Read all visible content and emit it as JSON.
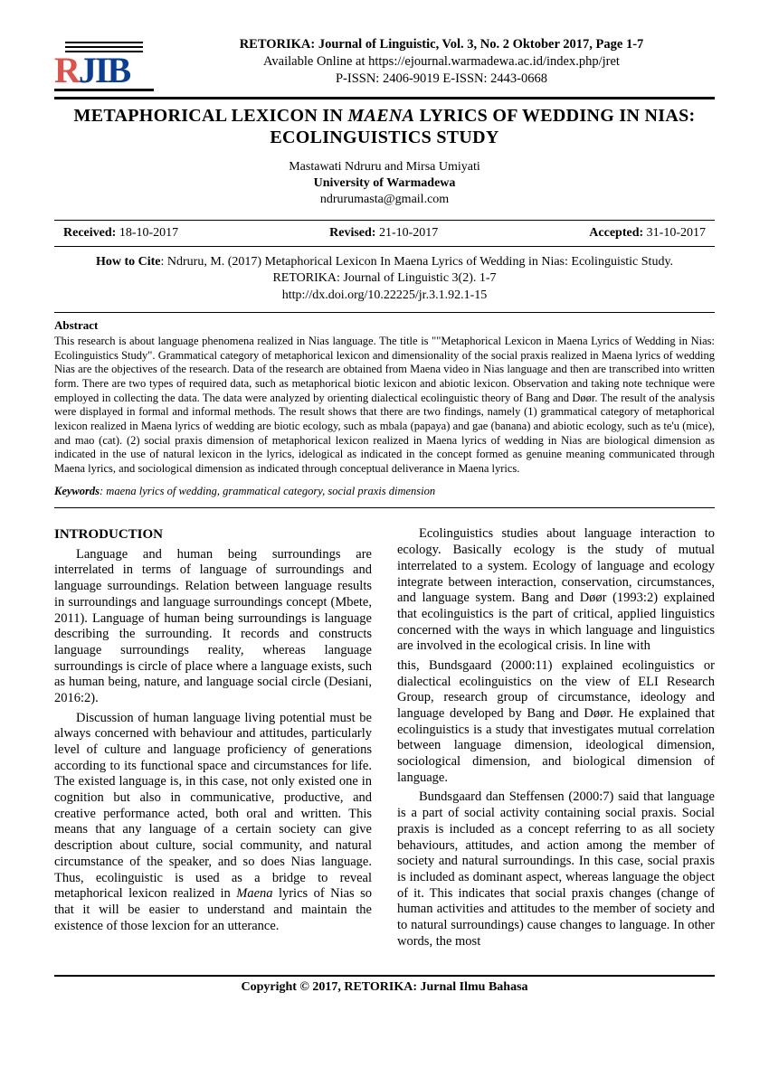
{
  "header": {
    "logo_text_r": "R",
    "logo_text_jib": "JIB",
    "journal_line1": "RETORIKA: Journal of Linguistic, Vol. 3, No. 2 Oktober 2017, Page 1-7",
    "journal_line2": "Available Online at https://ejournal.warmadewa.ac.id/index.php/jret",
    "journal_line3": "P-ISSN: 2406-9019         E-ISSN: 2443-0668"
  },
  "title": "METAPHORICAL LEXICON IN MAENA LYRICS OF WEDDING IN NIAS: ECOLINGUISTICS STUDY",
  "authors": {
    "names": "Mastawati Ndruru and Mirsa Umiyati",
    "affiliation": "University of Warmadewa",
    "email": "ndrurumasta@gmail.com"
  },
  "dates": {
    "received_label": "Received:",
    "received": "18-10-2017",
    "revised_label": "Revised:",
    "revised": "21-10-2017",
    "accepted_label": "Accepted:",
    "accepted": "31-10-2017"
  },
  "cite": {
    "label": "How to Cite",
    "text": ": Ndruru, M. (2017) Metaphorical Lexicon In Maena Lyrics of Wedding in Nias: Ecolinguistic Study. RETORIKA: Journal of Linguistic 3(2). 1-7",
    "doi": "http://dx.doi.org/10.22225/jr.3.1.92.1-15"
  },
  "abstract": {
    "heading": "Abstract",
    "text": "This research is about language phenomena realized in Nias language. The title is \"\"Metaphorical Lexicon in Maena Lyrics of Wedding in Nias: Ecolinguistics Study\". Grammatical category of metaphorical lexicon and dimensionality of the social praxis realized in Maena lyrics of wedding Nias are the objectives of the research. Data of the research are obtained from Maena video in Nias language and then are transcribed into written form. There are two types of required data, such as metaphorical biotic lexicon and abiotic lexicon. Observation and taking note technique were employed in collecting the data. The data were analyzed by orienting dialectical ecolinguistic theory of Bang and Døør. The result of the analysis were displayed in formal and informal methods. The result shows that there are two findings, namely (1) grammatical category of metaphorical lexicon realized in Maena lyrics of wedding are biotic ecology, such as mbala (papaya) and gae (banana) and abiotic ecology, such as te'u (mice), and mao (cat). (2) social praxis dimension of metaphorical lexicon realized in Maena lyrics of wedding in Nias are biological dimension as indicated in the use of natural lexicon in the lyrics, idelogical as indicated in the concept formed as genuine meaning communicated through Maena lyrics, and sociological dimension as indicated through conceptual deliverance in Maena lyrics."
  },
  "keywords": {
    "label": "Keywords",
    "text": ": maena lyrics of wedding, grammatical category, social praxis dimension"
  },
  "intro_heading": "INTRODUCTION",
  "left_paragraphs": [
    "Language and human being surroundings are interrelated in terms of language of surroundings and language surroundings. Relation between language results in surroundings and language surroundings concept (Mbete, 2011). Language of human being surroundings is language describing the surrounding. It records and constructs language surroundings reality, whereas language surroundings is circle of place where a language exists, such as human being, nature, and language social circle (Desiani, 2016:2).",
    "Discussion of human language living potential must be always concerned with behaviour and attitudes, particularly level of culture and language proficiency of generations according to its functional space and circumstances for life. The existed language is, in this case, not only existed one in cognition but also in communicative, productive, and creative performance acted, both oral and written. This means that any language of a certain society can give description about culture, social community, and natural circumstance of the speaker, and so does Nias language. Thus, ecolinguistic is used as a bridge to reveal metaphorical lexicon realized in Maena lyrics of Nias so that it will be easier to understand and maintain the existence of those lexcion for an utterance."
  ],
  "right_paragraphs": [
    "Ecolinguistics studies about language interaction to ecology. Basically ecology is the study of mutual interrelated to a system. Ecology of language and ecology integrate between interaction, conservation, circumstances, and language system. Bang and Døør (1993:2) explained that ecolinguistics is the part of critical, applied linguistics concerned with the ways in which language and linguistics are involved in the ecological crisis. In line with",
    "this, Bundsgaard (2000:11) explained ecolinguistics or dialectical ecolinguistics on the view of ELI Research Group, research group of circumstance, ideology and language developed by Bang and Døør. He explained that ecolinguistics is a study that investigates mutual correlation between language dimension, ideological dimension, sociological dimension, and biological dimension of language.",
    "Bundsgaard dan Steffensen (2000:7) said that language is a part of social activity containing social praxis. Social praxis is included as a concept referring to as all society behaviours, attitudes, and action among the member of society and natural surroundings. In this case, social praxis is included as dominant aspect, whereas language the object of it. This indicates that social praxis changes (change of human activities and attitudes to the member of society and to natural surroundings) cause changes to language. In other words, the most"
  ],
  "footer": "Copyright © 2017, RETORIKA: Jurnal Ilmu Bahasa"
}
